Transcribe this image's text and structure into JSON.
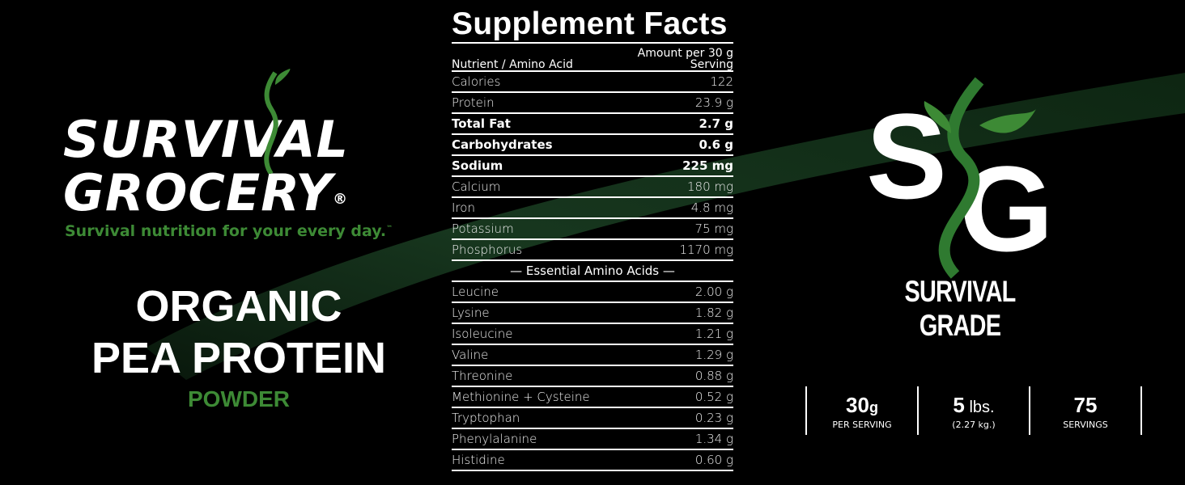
{
  "brand": {
    "line1": "SURVIVAL",
    "line2": "GROCERY",
    "registered": "®",
    "tagline": "Survival nutrition for your every day.",
    "tagline_tm": "™"
  },
  "product": {
    "line1": "ORGANIC",
    "line2": "PEA PROTEIN",
    "line3": "POWDER"
  },
  "facts": {
    "title": "Supplement Facts",
    "col_left": "Nutrient / Amino Acid",
    "col_right_1": "Amount per 30 g",
    "col_right_2": "Serving",
    "rows": [
      {
        "name": "Calories",
        "value": "122"
      },
      {
        "name": "Protein",
        "value": "23.9 g"
      },
      {
        "name": "Total Fat",
        "value": "2.7 g"
      },
      {
        "name": "Carbohydrates",
        "value": "0.6 g"
      },
      {
        "name": "Sodium",
        "value": "225 mg"
      },
      {
        "name": "Calcium",
        "value": "180 mg"
      },
      {
        "name": "Iron",
        "value": "4.8 mg"
      },
      {
        "name": "Potassium",
        "value": "75 mg"
      },
      {
        "name": "Phosphorus",
        "value": "1170 mg"
      }
    ],
    "section": "— Essential Amino Acids —",
    "amino": [
      {
        "name": "Leucine",
        "value": "2.00 g"
      },
      {
        "name": "Lysine",
        "value": "1.82 g"
      },
      {
        "name": "Isoleucine",
        "value": "1.21 g"
      },
      {
        "name": "Valine",
        "value": "1.29 g"
      },
      {
        "name": "Threonine",
        "value": "0.88 g"
      },
      {
        "name": "Methionine + Cysteine",
        "value": "0.52 g"
      },
      {
        "name": "Tryptophan",
        "value": "0.23 g"
      },
      {
        "name": "Phenylalanine",
        "value": "1.34 g"
      },
      {
        "name": "Histidine",
        "value": "0.60 g"
      }
    ]
  },
  "grade": {
    "logo_letters": "SG",
    "label": "SURVIVAL GRADE"
  },
  "stats": [
    {
      "big": "30",
      "unit": "g",
      "small": "PER SERVING"
    },
    {
      "big": "5",
      "unit": " lbs.",
      "small": "(2.27 kg.)"
    },
    {
      "big": "75",
      "unit": "",
      "small": "SERVINGS"
    }
  ],
  "colors": {
    "background": "#000000",
    "brand_green": "#3d8a35",
    "swoosh": "#12301a"
  }
}
